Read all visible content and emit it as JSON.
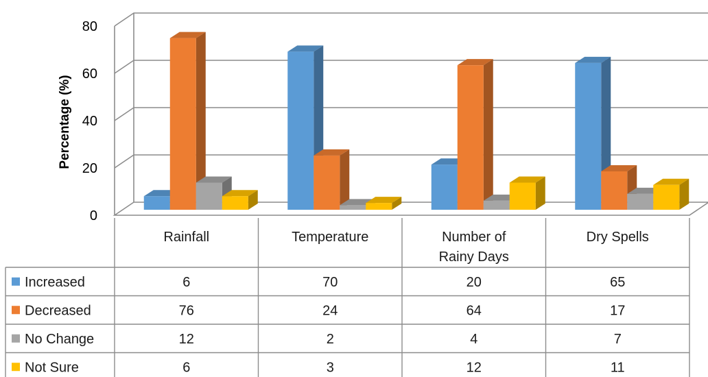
{
  "chart_data": {
    "type": "bar",
    "title": "",
    "xlabel": "",
    "ylabel": "Percentage (%)",
    "ylim": [
      0,
      80
    ],
    "yticks": [
      0,
      20,
      40,
      60,
      80
    ],
    "categories": [
      "Rainfall",
      "Temperature",
      "Number of Rainy Days",
      "Dry Spells"
    ],
    "series": [
      {
        "name": "Increased",
        "values": [
          6,
          70,
          20,
          65
        ],
        "color": "#5B9BD5"
      },
      {
        "name": "Decreased",
        "values": [
          76,
          24,
          64,
          17
        ],
        "color": "#ED7D31"
      },
      {
        "name": "No Change",
        "values": [
          12,
          2,
          4,
          7
        ],
        "color": "#A5A5A5"
      },
      {
        "name": "Not Sure",
        "values": [
          6,
          3,
          12,
          11
        ],
        "color": "#FFC000"
      }
    ],
    "grid": true,
    "style": "3d-clustered-column",
    "data_table": true,
    "legend": "data-table-left"
  }
}
